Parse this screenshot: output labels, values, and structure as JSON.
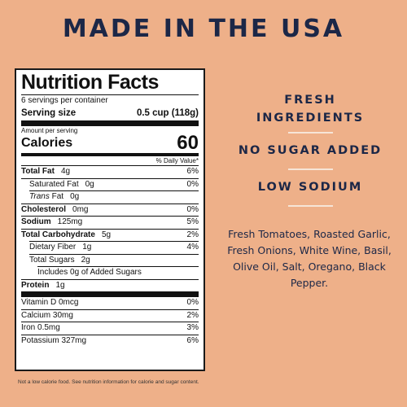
{
  "headline": "MADE IN THE USA",
  "label": {
    "title": "Nutrition Facts",
    "servings_per_container": "6 servings per container",
    "serving_size_label": "Serving size",
    "serving_size_value": "0.5 cup (118g)",
    "amount_per_serving": "Amount per serving",
    "calories_label": "Calories",
    "calories_value": "60",
    "daily_value_header": "% Daily Value*",
    "nutrients": [
      {
        "name": "Total Fat",
        "amount": "4g",
        "dv": "6%"
      },
      {
        "name": "Saturated Fat",
        "amount": "0g",
        "dv": "0%"
      },
      {
        "name_italic": "Trans",
        "name_rest": " Fat",
        "amount": "0g"
      },
      {
        "name": "Cholesterol",
        "amount": "0mg",
        "dv": "0%"
      },
      {
        "name": "Sodium",
        "amount": "125mg",
        "dv": "5%"
      },
      {
        "name": "Total Carbohydrate",
        "amount": "5g",
        "dv": "2%"
      },
      {
        "name": "Dietary Fiber",
        "amount": "1g",
        "dv": "4%"
      },
      {
        "name": "Total Sugars",
        "amount": "2g"
      },
      {
        "text": "Includes 0g of Added Sugars"
      },
      {
        "name": "Protein",
        "amount": "1g"
      }
    ],
    "vitamins": [
      {
        "text": "Vitamin D 0mcg",
        "dv": "0%"
      },
      {
        "text": "Calcium 30mg",
        "dv": "2%"
      },
      {
        "text": "Iron 0.5mg",
        "dv": "3%"
      },
      {
        "text": "Potassium 327mg",
        "dv": "6%"
      }
    ]
  },
  "footnote": "Not a low calorie food. See nutrition information for calorie and sugar content.",
  "claims": {
    "fresh_line1": "FRESH",
    "fresh_line2": "INGREDIENTS",
    "no_sugar": "NO SUGAR ADDED",
    "low_sodium": "LOW SODIUM"
  },
  "ingredients": "Fresh Tomatoes, Roasted Garlic, Fresh Onions, White Wine, Basil, Olive Oil, Salt, Oregano, Black Pepper.",
  "colors": {
    "background": "#eeb089",
    "navy_text": "#1c2747",
    "divider": "#f6e5d7"
  }
}
